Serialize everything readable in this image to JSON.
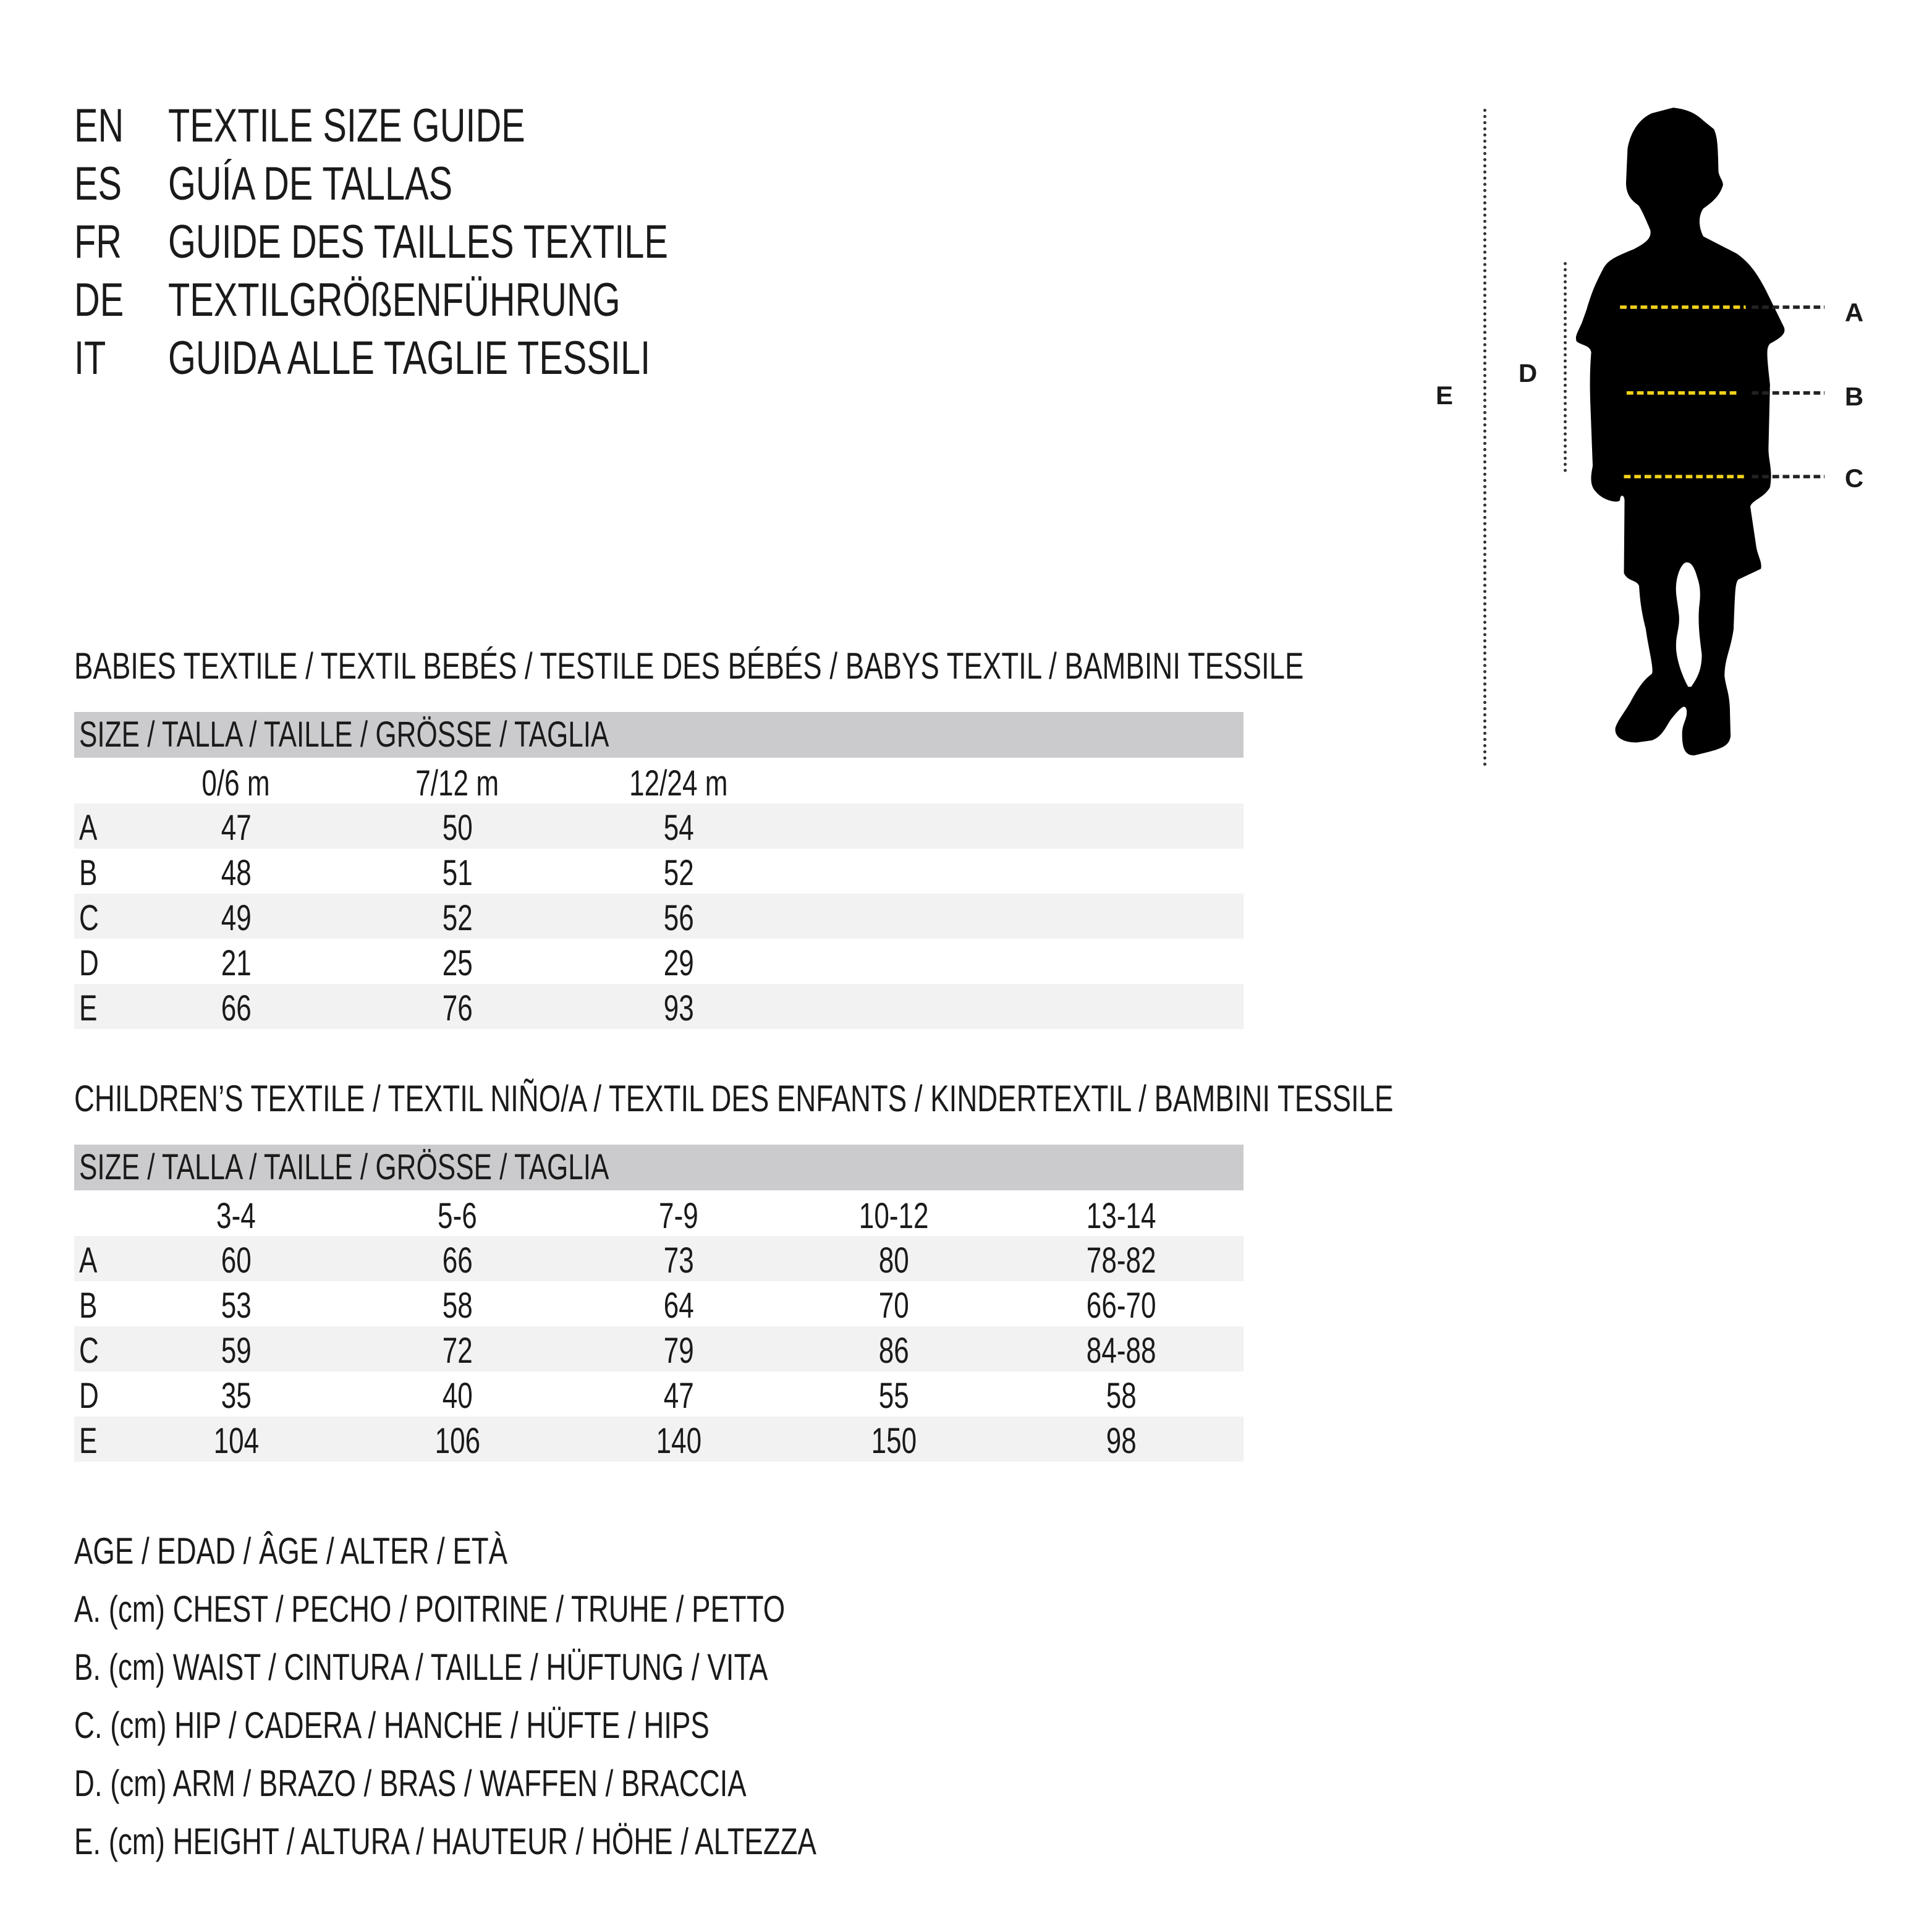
{
  "header": [
    {
      "code": "EN",
      "title": "TEXTILE SIZE GUIDE"
    },
    {
      "code": "ES",
      "title": "GUÍA DE TALLAS"
    },
    {
      "code": "FR",
      "title": "GUIDE DES TAILLES TEXTILE"
    },
    {
      "code": "DE",
      "title": "TEXTILGRÖßENFÜHRUNG"
    },
    {
      "code": "IT",
      "title": "GUIDA ALLE TAGLIE TESSILI"
    }
  ],
  "babies": {
    "heading": "BABIES TEXTILE / TEXTIL BEBÉS / TESTILE DES BÉBÉS / BABYS TEXTIL / BAMBINI TESSILE",
    "size_label": "SIZE / TALLA / TAILLE / GRÖSSE / TAGLIA",
    "columns": [
      "0/6 m",
      "7/12 m",
      "12/24 m"
    ],
    "rows": [
      {
        "label": "A",
        "values": [
          "47",
          "50",
          "54"
        ]
      },
      {
        "label": "B",
        "values": [
          "48",
          "51",
          "52"
        ]
      },
      {
        "label": "C",
        "values": [
          "49",
          "52",
          "56"
        ]
      },
      {
        "label": "D",
        "values": [
          "21",
          "25",
          "29"
        ]
      },
      {
        "label": "E",
        "values": [
          "66",
          "76",
          "93"
        ]
      }
    ]
  },
  "children": {
    "heading": "CHILDREN’S TEXTILE / TEXTIL NIÑO/A / TEXTIL DES ENFANTS / KINDERTEXTIL / BAMBINI TESSILE",
    "size_label": "SIZE / TALLA / TAILLE / GRÖSSE / TAGLIA",
    "columns": [
      "3-4",
      "5-6",
      "7-9",
      "10-12",
      "13-14"
    ],
    "rows": [
      {
        "label": "A",
        "values": [
          "60",
          "66",
          "73",
          "80",
          "78-82"
        ]
      },
      {
        "label": "B",
        "values": [
          "53",
          "58",
          "64",
          "70",
          "66-70"
        ]
      },
      {
        "label": "C",
        "values": [
          "59",
          "72",
          "79",
          "86",
          "84-88"
        ]
      },
      {
        "label": "D",
        "values": [
          "35",
          "40",
          "47",
          "55",
          "58"
        ]
      },
      {
        "label": "E",
        "values": [
          "104",
          "106",
          "140",
          "150",
          "98"
        ]
      }
    ]
  },
  "legend": [
    "AGE / EDAD / ÂGE / ALTER / ETÀ",
    "A. (cm) CHEST / PECHO / POITRINE / TRUHE / PETTO",
    "B. (cm) WAIST / CINTURA / TAILLE / HÜFTUNG / VITA",
    "C. (cm) HIP / CADERA / HANCHE / HÜFTE / HIPS",
    "D. (cm) ARM / BRAZO / BRAS / WAFFEN / BRACCIA",
    "E. (cm) HEIGHT / ALTURA / HAUTEUR / HÖHE / ALTEZZA"
  ],
  "figure": {
    "labels": {
      "A": "A",
      "B": "B",
      "C": "C",
      "D": "D",
      "E": "E"
    },
    "measure_line_color": "#f2d21b",
    "silhouette_color": "#000000"
  }
}
